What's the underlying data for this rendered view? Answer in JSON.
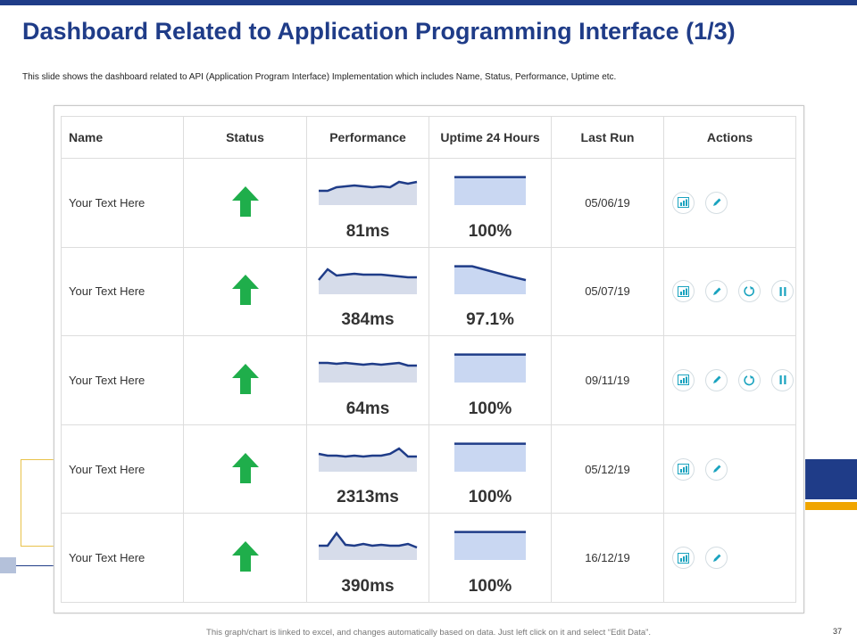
{
  "title": "Dashboard Related to Application Programming Interface (1/3)",
  "subtitle": "This slide shows the dashboard related to API (Application Program Interface) Implementation  which includes Name, Status, Performance, Uptime etc.",
  "colors": {
    "brand": "#1f3c88",
    "accent": "#f0a500",
    "status_up": "#1fae4b",
    "spark_fill": "#c9d7f2",
    "icon": "#1aa3bf"
  },
  "table": {
    "headers": [
      "Name",
      "Status",
      "Performance",
      "Uptime 24 Hours",
      "Last Run",
      "Actions"
    ],
    "rows": [
      {
        "name": "Your Text Here",
        "status": "up-arrow-icon",
        "performance": "81ms",
        "uptime": "100%",
        "last_run": "05/06/19",
        "perf_trend": [
          3,
          3,
          5,
          5.5,
          6,
          5.5,
          5,
          5.5,
          5,
          8,
          7,
          8
        ],
        "uptime_trend": [
          100,
          100,
          100,
          100,
          100
        ],
        "actions": [
          "chart-icon",
          "edit-icon"
        ]
      },
      {
        "name": "Your Text Here",
        "status": "up-arrow-icon",
        "performance": "384ms",
        "uptime": "97.1%",
        "last_run": "05/07/19",
        "perf_trend": [
          3,
          9,
          5.5,
          6,
          6.5,
          6,
          6,
          6,
          5.5,
          5,
          4.5,
          4.5
        ],
        "uptime_trend": [
          100,
          100,
          99,
          98,
          97.1
        ],
        "actions": [
          "chart-icon",
          "edit-icon",
          "refresh-icon",
          "pause-icon"
        ]
      },
      {
        "name": "Your Text Here",
        "status": "up-arrow-icon",
        "performance": "64ms",
        "uptime": "100%",
        "last_run": "09/11/19",
        "perf_trend": [
          6,
          6,
          5.5,
          6,
          5.5,
          5,
          5.5,
          5,
          5.5,
          6,
          4.5,
          4.5
        ],
        "uptime_trend": [
          100,
          100,
          100,
          100,
          100
        ],
        "actions": [
          "chart-icon",
          "edit-icon",
          "refresh-icon",
          "pause-icon"
        ]
      },
      {
        "name": "Your Text Here",
        "status": "up-arrow-icon",
        "performance": "2313ms",
        "uptime": "100%",
        "last_run": "05/12/19",
        "perf_trend": [
          5,
          4,
          4,
          3.5,
          4,
          3.5,
          4,
          4,
          5,
          8,
          3.5,
          3.5
        ],
        "uptime_trend": [
          100,
          100,
          100,
          100,
          100
        ],
        "actions": [
          "chart-icon",
          "edit-icon"
        ]
      },
      {
        "name": "Your Text Here",
        "status": "up-arrow-icon",
        "performance": "390ms",
        "uptime": "100%",
        "last_run": "16/12/19",
        "perf_trend": [
          3,
          3,
          10,
          3.5,
          3,
          4,
          3,
          3.5,
          3,
          3,
          4,
          2
        ],
        "uptime_trend": [
          100,
          100,
          100,
          100,
          100
        ],
        "actions": [
          "chart-icon",
          "edit-icon"
        ]
      }
    ]
  },
  "footer": "This graph/chart is linked to excel, and changes automatically based on data. Just left click on it and select “Edit Data”.",
  "page_number": "37"
}
